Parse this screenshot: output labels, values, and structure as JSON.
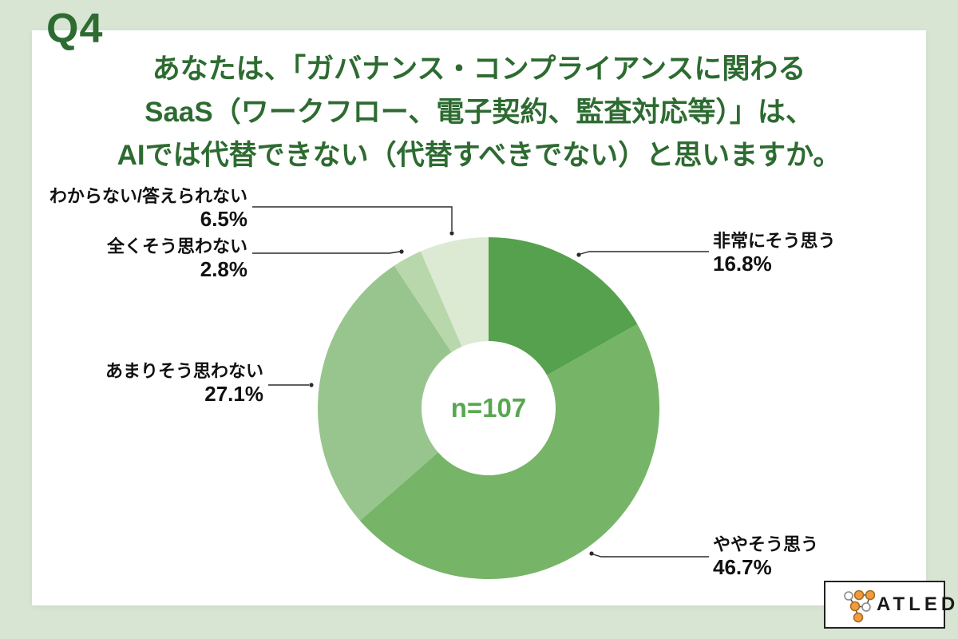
{
  "page": {
    "background_color": "#d8e5d3",
    "card_color": "#ffffff",
    "accent_green": "#2d6b31"
  },
  "question_tag": "Q4",
  "title": {
    "line1": "あなたは、「ガバナンス・コンプライアンスに関わる",
    "line2": "SaaS（ワークフロー、電子契約、監査対応等）」は、",
    "line3": "AIでは代替できない（代替すべきでない）と思いますか。",
    "color": "#2d6b31"
  },
  "chart_data": {
    "type": "pie",
    "donut": true,
    "start_angle_deg": 0,
    "direction": "clockwise",
    "center_label": "n=107",
    "center_label_color": "#57a751",
    "slices": [
      {
        "label": "非常にそう思う",
        "value_pct": 16.8,
        "display": "16.8%",
        "color": "#55a14d"
      },
      {
        "label": "ややそう思う",
        "value_pct": 46.7,
        "display": "46.7%",
        "color": "#76b467"
      },
      {
        "label": "あまりそう思わない",
        "value_pct": 27.1,
        "display": "27.1%",
        "color": "#98c58e"
      },
      {
        "label": "全くそう思わない",
        "value_pct": 2.8,
        "display": "2.8%",
        "color": "#b8d7ab"
      },
      {
        "label": "わからない/答えられない",
        "value_pct": 6.5,
        "display": "6.5%",
        "color": "#dcead3"
      }
    ]
  },
  "logo": {
    "text": "ATLED",
    "node_orange": "#f09c3e",
    "node_white": "#ffffff"
  }
}
